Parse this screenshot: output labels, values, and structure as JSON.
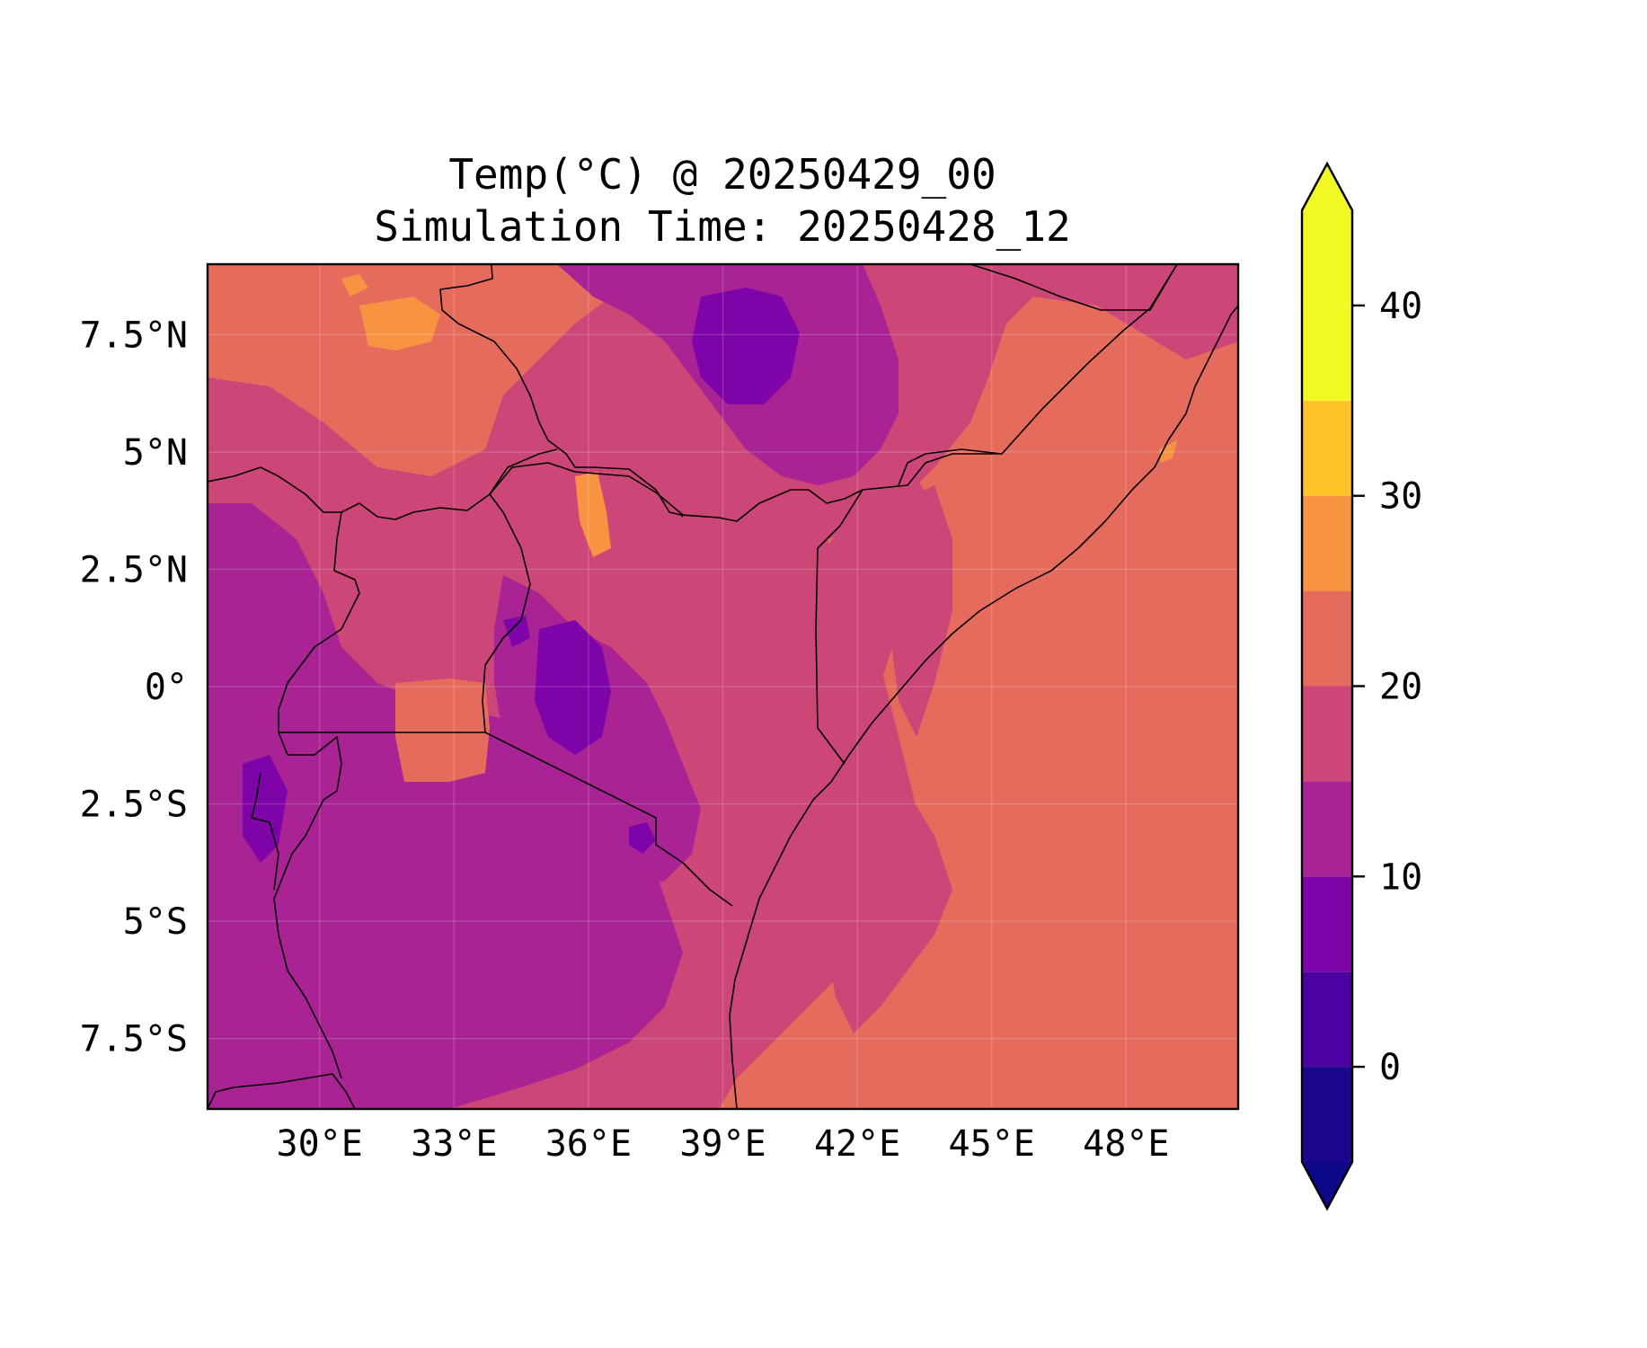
{
  "map": {
    "title_line1": "Temp(°C) @ 20250429_00",
    "title_line2": "Simulation Time: 20250428_12",
    "lon_range": [
      27.5,
      50.5
    ],
    "lat_range": [
      -9,
      9
    ],
    "lon_ticks": [
      {
        "value": 30,
        "label": "30°E"
      },
      {
        "value": 33,
        "label": "33°E"
      },
      {
        "value": 36,
        "label": "36°E"
      },
      {
        "value": 39,
        "label": "39°E"
      },
      {
        "value": 42,
        "label": "42°E"
      },
      {
        "value": 45,
        "label": "45°E"
      },
      {
        "value": 48,
        "label": "48°E"
      }
    ],
    "lat_ticks": [
      {
        "value": 7.5,
        "label": "7.5°N"
      },
      {
        "value": 5,
        "label": "5°N"
      },
      {
        "value": 2.5,
        "label": "2.5°N"
      },
      {
        "value": 0,
        "label": "0°"
      },
      {
        "value": -2.5,
        "label": "2.5°S"
      },
      {
        "value": -5,
        "label": "5°S"
      },
      {
        "value": -7.5,
        "label": "7.5°S"
      }
    ],
    "gridlines": true
  },
  "colorbar": {
    "min": -5,
    "max": 45,
    "levels": [
      -5,
      0,
      5,
      10,
      15,
      20,
      25,
      30,
      35,
      40,
      45
    ],
    "extend": "both",
    "colors": [
      "#1b068d",
      "#4c02a1",
      "#7e03a8",
      "#a92395",
      "#cc4778",
      "#e56b5d",
      "#f89441",
      "#fdc328",
      "#f0f921"
    ],
    "under_color": "#0d0887",
    "over_color": "#f0f921",
    "tick_labels": [
      {
        "value": 0,
        "label": "0"
      },
      {
        "value": 10,
        "label": "10"
      },
      {
        "value": 20,
        "label": "20"
      },
      {
        "value": 30,
        "label": "30"
      },
      {
        "value": 40,
        "label": "40"
      }
    ]
  }
}
